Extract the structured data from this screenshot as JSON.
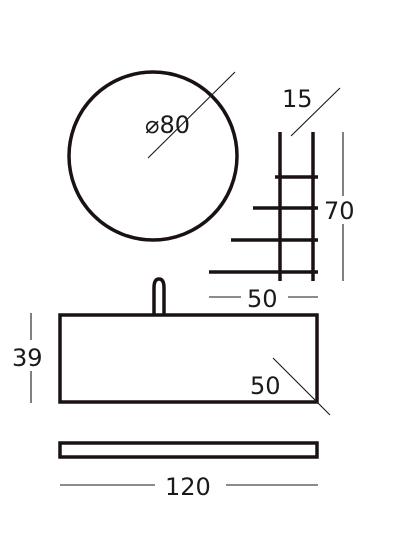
{
  "drawing": {
    "mirror": {
      "diameter_label": "⌀80"
    },
    "rack": {
      "depth_label": "15",
      "height_label": "70",
      "width_label": "50"
    },
    "cabinet": {
      "height_label": "39",
      "depth_label": "50",
      "width_label": "120"
    }
  }
}
